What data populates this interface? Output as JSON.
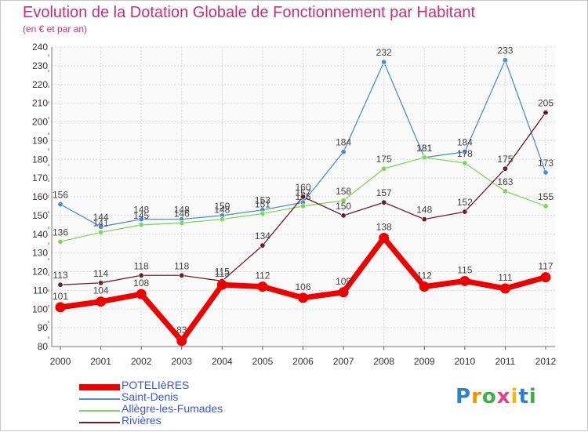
{
  "header": {
    "title": "Evolution de la Dotation Globale de Fonctionnement par Habitant",
    "subtitle": "(en € et par an)"
  },
  "brand": {
    "text": "Proxiti"
  },
  "chart_data": {
    "type": "line",
    "title": "Evolution de la Dotation Globale de Fonctionnement par Habitant",
    "subtitle": "(en € et par an)",
    "xlabel": "",
    "ylabel": "",
    "x": [
      "2000",
      "2001",
      "2002",
      "2003",
      "2004",
      "2005",
      "2006",
      "2007",
      "2008",
      "2009",
      "2010",
      "2011",
      "2012"
    ],
    "ylim": [
      80,
      240
    ],
    "yticks": [
      80,
      90,
      100,
      110,
      120,
      130,
      140,
      150,
      160,
      170,
      180,
      190,
      200,
      210,
      220,
      230,
      240
    ],
    "grid": true,
    "legend_position": "bottom-left",
    "series": [
      {
        "name": "POTELIèRES",
        "color": "#ee0000",
        "values": [
          101,
          104,
          108,
          83,
          113,
          112,
          106,
          109,
          138,
          112,
          115,
          111,
          117
        ]
      },
      {
        "name": "Saint-Denis",
        "color": "#4b8fd0",
        "values": [
          156,
          144,
          148,
          148,
          150,
          153,
          157,
          184,
          232,
          181,
          184,
          233,
          173
        ]
      },
      {
        "name": "Allègre-les-Fumades",
        "color": "#7fd65a",
        "values": [
          136,
          141,
          145,
          146,
          148,
          151,
          155,
          158,
          175,
          181,
          178,
          163,
          155
        ]
      },
      {
        "name": "Rivières",
        "color": "#6b1f24",
        "values": [
          113,
          114,
          118,
          118,
          115,
          134,
          160,
          150,
          157,
          148,
          152,
          175,
          205
        ]
      }
    ]
  }
}
